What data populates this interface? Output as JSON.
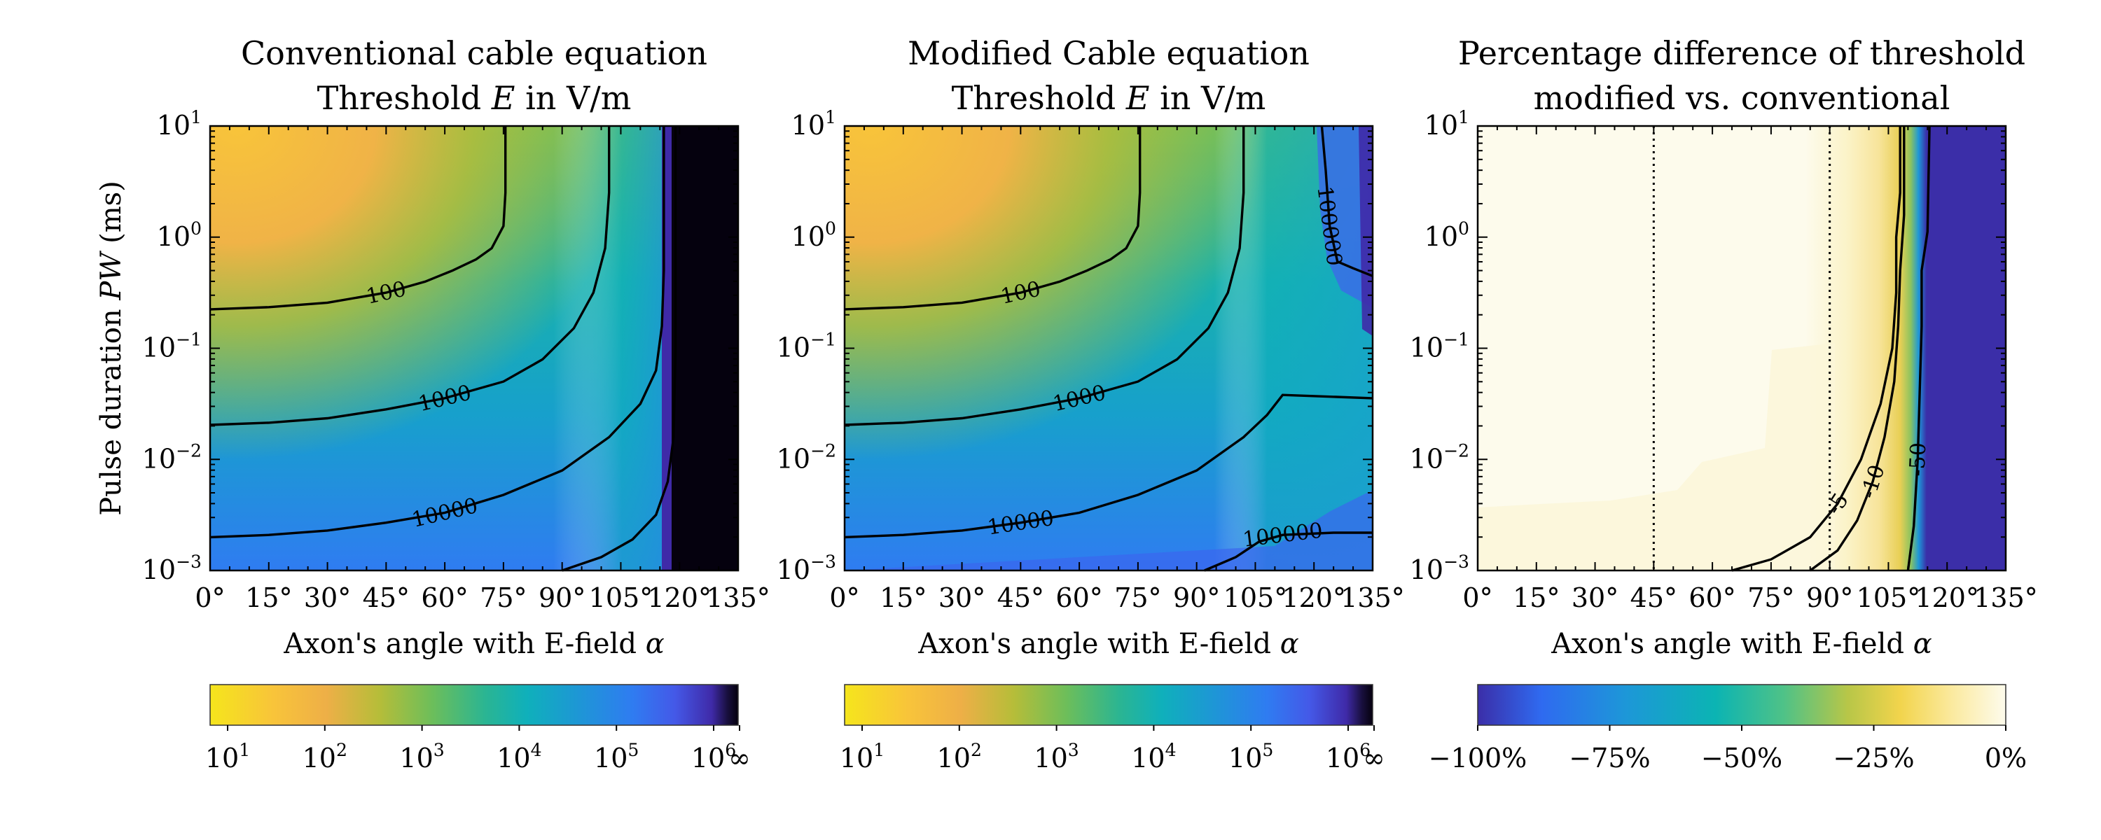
{
  "chart_data": [
    {
      "type": "heatmap",
      "title": [
        "Conventional cable equation",
        "Threshold E in V/m"
      ],
      "xlabel": "Axon's angle with E-field α",
      "ylabel": "Pulse duration PW (ms)",
      "x_ticks": [
        "0°",
        "15°",
        "30°",
        "45°",
        "60°",
        "75°",
        "90°",
        "105°",
        "120°",
        "135°"
      ],
      "x_values": [
        0,
        15,
        30,
        45,
        60,
        75,
        90,
        105,
        120,
        135
      ],
      "y_ticks": [
        "10−3",
        "10−2",
        "10−1",
        "100",
        "101"
      ],
      "y_exponents": [
        -3,
        -2,
        -1,
        0,
        1
      ],
      "xlim": [
        0,
        135
      ],
      "ylim_log10": [
        -3,
        1
      ],
      "scale": "log",
      "colorbar": {
        "ticks": [
          "101",
          "102",
          "103",
          "104",
          "105",
          "106",
          "∞"
        ],
        "colors": [
          "#f5e51c",
          "#f8c43a",
          "#eeaf47",
          "#b6bd39",
          "#6dbe5a",
          "#2bb592",
          "#0fb0bb",
          "#1e96d6",
          "#2f7cf1",
          "#4459e8",
          "#3f2aa8",
          "#180f3d",
          "#05010e"
        ]
      },
      "contours": [
        {
          "label": "100",
          "points": [
            [
              0,
              -0.65
            ],
            [
              15,
              -0.63
            ],
            [
              30,
              -0.59
            ],
            [
              45,
              -0.5
            ],
            [
              55,
              -0.4
            ],
            [
              62,
              -0.3
            ],
            [
              68,
              -0.2
            ],
            [
              72,
              -0.1
            ],
            [
              75,
              0.1
            ],
            [
              75.5,
              0.4
            ],
            [
              75.5,
              1
            ]
          ]
        },
        {
          "label": "1000",
          "points": [
            [
              0,
              -1.69
            ],
            [
              15,
              -1.67
            ],
            [
              30,
              -1.63
            ],
            [
              45,
              -1.55
            ],
            [
              60,
              -1.45
            ],
            [
              75,
              -1.3
            ],
            [
              85,
              -1.1
            ],
            [
              93,
              -0.82
            ],
            [
              98,
              -0.5
            ],
            [
              101,
              -0.1
            ],
            [
              102,
              0.4
            ],
            [
              102,
              1
            ]
          ]
        },
        {
          "label": "10000",
          "points": [
            [
              0,
              -2.7
            ],
            [
              15,
              -2.68
            ],
            [
              30,
              -2.64
            ],
            [
              45,
              -2.57
            ],
            [
              60,
              -2.48
            ],
            [
              75,
              -2.32
            ],
            [
              90,
              -2.1
            ],
            [
              102,
              -1.8
            ],
            [
              110,
              -1.5
            ],
            [
              114,
              -1.2
            ],
            [
              115.5,
              -0.8
            ],
            [
              116,
              -0.3
            ],
            [
              116,
              1
            ]
          ]
        },
        {
          "label": "",
          "points": [
            [
              90,
              -3
            ],
            [
              100,
              -2.88
            ],
            [
              108,
              -2.72
            ],
            [
              114,
              -2.5
            ],
            [
              117,
              -2.2
            ],
            [
              118.5,
              -1.8
            ],
            [
              119,
              -1.0
            ],
            [
              119,
              0
            ],
            [
              119,
              1
            ]
          ]
        }
      ]
    },
    {
      "type": "heatmap",
      "title": [
        "Modified Cable equation",
        "Threshold E in V/m"
      ],
      "xlabel": "Axon's angle with E-field α",
      "x_ticks": [
        "0°",
        "15°",
        "30°",
        "45°",
        "60°",
        "75°",
        "90°",
        "105°",
        "120°",
        "135°"
      ],
      "y_ticks": [
        "10−3",
        "10−2",
        "10−1",
        "100",
        "101"
      ],
      "xlim": [
        0,
        135
      ],
      "ylim_log10": [
        -3,
        1
      ],
      "scale": "log",
      "colorbar": {
        "ticks": [
          "101",
          "102",
          "103",
          "104",
          "105",
          "106",
          "∞"
        ],
        "colors": [
          "#f5e51c",
          "#f8c43a",
          "#eeaf47",
          "#b6bd39",
          "#6dbe5a",
          "#2bb592",
          "#0fb0bb",
          "#1e96d6",
          "#2f7cf1",
          "#4459e8",
          "#3f2aa8",
          "#180f3d",
          "#05010e"
        ]
      },
      "contours": [
        {
          "label": "100",
          "points": [
            [
              0,
              -0.65
            ],
            [
              15,
              -0.63
            ],
            [
              30,
              -0.59
            ],
            [
              45,
              -0.5
            ],
            [
              55,
              -0.4
            ],
            [
              62,
              -0.3
            ],
            [
              68,
              -0.2
            ],
            [
              72,
              -0.1
            ],
            [
              75,
              0.1
            ],
            [
              75.5,
              0.4
            ],
            [
              75.5,
              1
            ]
          ]
        },
        {
          "label": "1000",
          "points": [
            [
              0,
              -1.69
            ],
            [
              15,
              -1.67
            ],
            [
              30,
              -1.63
            ],
            [
              45,
              -1.55
            ],
            [
              60,
              -1.45
            ],
            [
              75,
              -1.3
            ],
            [
              85,
              -1.1
            ],
            [
              93,
              -0.82
            ],
            [
              98,
              -0.5
            ],
            [
              101,
              -0.1
            ],
            [
              102,
              0.4
            ],
            [
              102,
              1
            ]
          ]
        },
        {
          "label": "10000",
          "points": [
            [
              0,
              -2.7
            ],
            [
              15,
              -2.68
            ],
            [
              30,
              -2.64
            ],
            [
              45,
              -2.57
            ],
            [
              60,
              -2.48
            ],
            [
              75,
              -2.32
            ],
            [
              90,
              -2.1
            ],
            [
              102,
              -1.8
            ],
            [
              108,
              -1.6
            ],
            [
              112,
              -1.42
            ],
            [
              135,
              -1.45
            ]
          ]
        },
        {
          "label": "100000",
          "points": [
            [
              92,
              -3
            ],
            [
              100,
              -2.88
            ],
            [
              106,
              -2.74
            ],
            [
              112,
              -2.68
            ],
            [
              125,
              -2.66
            ],
            [
              135,
              -2.66
            ]
          ]
        },
        {
          "label": "100000",
          "points": [
            [
              135,
              -0.35
            ],
            [
              130,
              -0.28
            ],
            [
              126,
              -0.22
            ],
            [
              124,
              0.1
            ],
            [
              123,
              0.6
            ],
            [
              122,
              1
            ]
          ]
        }
      ]
    },
    {
      "type": "heatmap",
      "title": [
        "Percentage difference of threshold",
        "modified vs. conventional"
      ],
      "xlabel": "Axon's angle with E-field α",
      "x_ticks": [
        "0°",
        "15°",
        "30°",
        "45°",
        "60°",
        "75°",
        "90°",
        "105°",
        "120°",
        "135°"
      ],
      "y_ticks": [
        "10−3",
        "10−2",
        "10−1",
        "100",
        "101"
      ],
      "xlim": [
        0,
        135
      ],
      "ylim_log10": [
        -3,
        1
      ],
      "reference_lines_x": [
        45,
        90
      ],
      "colorbar": {
        "ticks": [
          "−100%",
          "−75%",
          "−50%",
          "−25%",
          "0%"
        ],
        "colors": [
          "#3b2ea8",
          "#2f6af0",
          "#1d97d8",
          "#0bb4b3",
          "#4fc287",
          "#b7c648",
          "#f2d44c",
          "#fbeaa0",
          "#fdfbec"
        ]
      },
      "contours": [
        {
          "label": "-5",
          "points": [
            [
              65,
              -3
            ],
            [
              75,
              -2.9
            ],
            [
              85,
              -2.7
            ],
            [
              92,
              -2.4
            ],
            [
              98,
              -2.0
            ],
            [
              103,
              -1.5
            ],
            [
              106,
              -1.0
            ],
            [
              107,
              -0.5
            ],
            [
              107,
              0
            ],
            [
              108,
              0.4
            ],
            [
              108,
              1
            ]
          ]
        },
        {
          "label": "-10",
          "points": [
            [
              85,
              -3
            ],
            [
              92,
              -2.82
            ],
            [
              97,
              -2.55
            ],
            [
              101,
              -2.2
            ],
            [
              104,
              -1.8
            ],
            [
              106.5,
              -1.3
            ],
            [
              107.5,
              -0.8
            ],
            [
              108,
              -0.3
            ],
            [
              109,
              0.2
            ],
            [
              109,
              1
            ]
          ]
        },
        {
          "label": "-50",
          "points": [
            [
              110,
              -3
            ],
            [
              111.5,
              -2.6
            ],
            [
              112.5,
              -2.0
            ],
            [
              113,
              -1.4
            ],
            [
              113.5,
              -0.8
            ],
            [
              113.5,
              -0.3
            ],
            [
              115,
              0.05
            ],
            [
              115.5,
              1
            ]
          ]
        }
      ]
    }
  ]
}
